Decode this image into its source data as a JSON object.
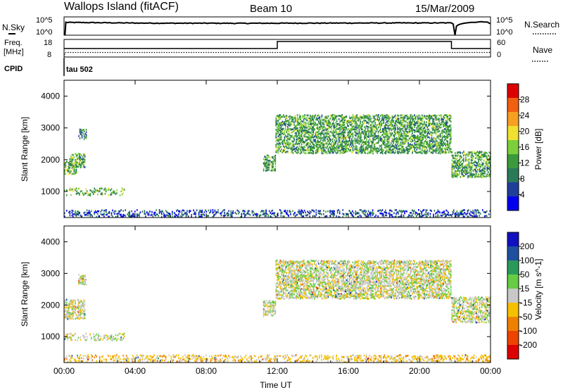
{
  "header": {
    "station": "Wallops Island (fitACF)",
    "beam": "Beam 10",
    "date": "15/Mar/2009"
  },
  "top_panels": {
    "nsky_label": "N.Sky",
    "nsky_ticks": [
      "10^5",
      "10^0"
    ],
    "nsearch_label": "N.Search",
    "nsearch_ticks": [
      "10^5",
      "10^0"
    ],
    "freq_label_1": "Freq.",
    "freq_label_2": "[MHz]",
    "freq_ticks": [
      "18",
      "8"
    ],
    "nave_label": "Nave",
    "nave_ticks": [
      "60",
      "0"
    ],
    "cpid_label": "CPID",
    "cpid_value": "tau 502"
  },
  "colors": {
    "power_scale": [
      "#0000ee",
      "#1f3f9a",
      "#2a7a5a",
      "#3c9a3c",
      "#7ccf3c",
      "#f0e030",
      "#f5a020",
      "#f06010",
      "#dd0000"
    ],
    "velocity_scale": [
      "#dd0000",
      "#ee4400",
      "#f08000",
      "#f5c000",
      "#c8c8c8",
      "#66cc44",
      "#2a9a5a",
      "#1f50a0",
      "#1010c0"
    ],
    "ground_scatter": "#c8c8c8"
  },
  "chart_data": [
    {
      "type": "line",
      "panel": "N.Sky / N.Search",
      "y_scale": "log",
      "ylim": [
        1,
        100000
      ],
      "series": [
        {
          "name": "N.Sky",
          "x": [
            0.05,
            0.1,
            2,
            4,
            6,
            8,
            10,
            12,
            14,
            16,
            18,
            20,
            21.8,
            22,
            23,
            23.6,
            24
          ],
          "y": [
            1,
            3000,
            2500,
            2000,
            1800,
            1800,
            1700,
            1800,
            1900,
            2000,
            2100,
            2100,
            2200,
            1,
            3500,
            5000,
            1500
          ]
        }
      ]
    },
    {
      "type": "line",
      "panel": "Freq / Nave",
      "series": [
        {
          "name": "Freq.",
          "x": [
            0,
            0.05,
            12,
            21.8,
            24
          ],
          "y": [
            8,
            10.6,
            10.6,
            10.6,
            10.6
          ]
        },
        {
          "name": "Nave",
          "x": [
            0,
            12,
            12,
            21.8,
            21.8,
            24
          ],
          "y": [
            29,
            29,
            53,
            53,
            29,
            29
          ]
        }
      ]
    },
    {
      "type": "heatmap",
      "title": "Power",
      "xlabel": "Time UT",
      "ylabel": "Slant Range [km]",
      "xlim": [
        0,
        24
      ],
      "ylim": [
        180,
        4500
      ],
      "x_ticks": [
        "00:00",
        "04:00",
        "08:00",
        "12:00",
        "16:00",
        "20:00",
        "00:00"
      ],
      "y_ticks": [
        1000,
        2000,
        3000,
        4000
      ],
      "colorbar_label": "Power [dB]",
      "colorbar_ticks": [
        4,
        8,
        12,
        16,
        20,
        24,
        28
      ],
      "regions": [
        {
          "t0": 0.0,
          "t1": 0.7,
          "r0": 1550,
          "r1": 1950,
          "level": 16
        },
        {
          "t0": 0.3,
          "t1": 1.2,
          "r0": 1750,
          "r1": 2200,
          "level": 14
        },
        {
          "t0": 0.8,
          "t1": 1.3,
          "r0": 2650,
          "r1": 2950,
          "level": 12
        },
        {
          "t0": 0.0,
          "t1": 3.4,
          "r0": 880,
          "r1": 1100,
          "level": 16
        },
        {
          "t0": 11.2,
          "t1": 11.9,
          "r0": 1650,
          "r1": 2150,
          "level": 14
        },
        {
          "t0": 11.9,
          "t1": 21.8,
          "r0": 2200,
          "r1": 3400,
          "level": 14
        },
        {
          "t0": 21.8,
          "t1": 24.0,
          "r0": 1450,
          "r1": 2250,
          "level": 14
        },
        {
          "t0": 0.0,
          "t1": 24.0,
          "r0": 200,
          "r1": 420,
          "level": 6
        }
      ]
    },
    {
      "type": "heatmap",
      "title": "Velocity",
      "xlabel": "Time UT",
      "ylabel": "Slant Range [km]",
      "xlim": [
        0,
        24
      ],
      "ylim": [
        180,
        4500
      ],
      "x_ticks": [
        "00:00",
        "04:00",
        "08:00",
        "12:00",
        "16:00",
        "20:00",
        "00:00"
      ],
      "y_ticks": [
        1000,
        2000,
        3000,
        4000
      ],
      "colorbar_label": "Velocity [m s^-1]",
      "colorbar_ticks": [
        200,
        100,
        50,
        15,
        -15,
        -50,
        -100,
        -200
      ],
      "regions": [
        {
          "t0": 0.0,
          "t1": 1.2,
          "r0": 1550,
          "r1": 2200,
          "level": 0
        },
        {
          "t0": 0.8,
          "t1": 1.3,
          "r0": 2650,
          "r1": 2950,
          "level": 0
        },
        {
          "t0": 0.0,
          "t1": 3.4,
          "r0": 880,
          "r1": 1100,
          "level": 0
        },
        {
          "t0": 11.2,
          "t1": 11.9,
          "r0": 1650,
          "r1": 2150,
          "level": 0
        },
        {
          "t0": 11.9,
          "t1": 21.8,
          "r0": 2200,
          "r1": 3400,
          "level": 0
        },
        {
          "t0": 21.8,
          "t1": 24.0,
          "r0": 1450,
          "r1": 2250,
          "level": 0
        },
        {
          "t0": 0.0,
          "t1": 24.0,
          "r0": 200,
          "r1": 420,
          "level": -30
        }
      ]
    }
  ]
}
